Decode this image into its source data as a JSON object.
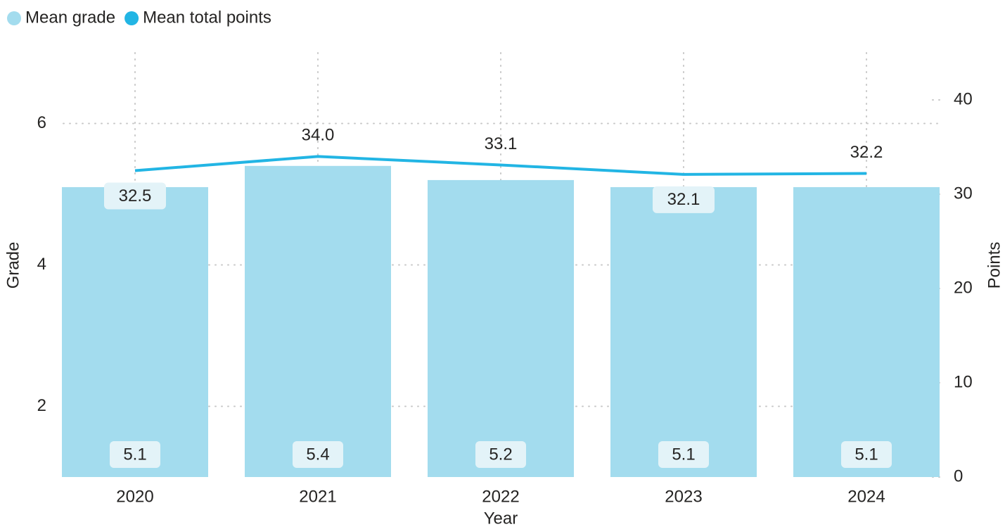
{
  "chart_data": {
    "type": "bar+line",
    "x_label": "Year",
    "y_label": "Grade",
    "y2_label": "Points",
    "categories": [
      "2020",
      "2021",
      "2022",
      "2023",
      "2024"
    ],
    "series": [
      {
        "name": "Mean grade",
        "color": "#a3dcee",
        "type": "bar",
        "values": [
          5.1,
          5.4,
          5.2,
          5.1,
          5.1
        ]
      },
      {
        "name": "Mean total points",
        "color": "#22b5e4",
        "type": "line",
        "axis": "y2",
        "values": [
          32.5,
          34.0,
          33.1,
          32.1,
          32.2
        ],
        "value_labels": [
          "32.5",
          "34.0",
          "33.1",
          "32.1",
          "32.2"
        ]
      }
    ],
    "ylim": [
      1,
      7
    ],
    "yticks": [
      2,
      4,
      6
    ],
    "y2lim": [
      0,
      45
    ],
    "y2ticks": [
      0,
      10,
      20,
      30,
      40
    ],
    "grid": true,
    "legend": "top-left"
  }
}
